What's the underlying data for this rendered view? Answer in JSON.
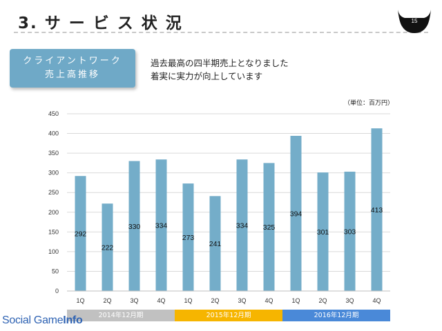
{
  "header": {
    "title": "3. サ ー ビ ス 状 況",
    "page_number": "15"
  },
  "label_box": {
    "line1": "クライアントワーク",
    "line2": "売上高推移"
  },
  "headline": {
    "line1": "過去最高の四半期売上となりました",
    "line2": "着実に実力が向上しています"
  },
  "unit_note": "（単位：百万円）",
  "periods": [
    {
      "label": "2014年12月期",
      "color": "#c1c1c1"
    },
    {
      "label": "2015年12月期",
      "color": "#f6b500"
    },
    {
      "label": "2016年12月期",
      "color": "#4a89d8"
    }
  ],
  "brand": {
    "part1": "Social Game",
    "part2": "Info"
  },
  "chart_data": {
    "type": "bar",
    "categories": [
      "1Q",
      "2Q",
      "3Q",
      "4Q",
      "1Q",
      "2Q",
      "3Q",
      "4Q",
      "1Q",
      "2Q",
      "3Q",
      "4Q"
    ],
    "values": [
      292,
      222,
      330,
      334,
      273,
      241,
      334,
      325,
      394,
      301,
      303,
      413
    ],
    "ylim": [
      0,
      450
    ],
    "yticks": [
      0,
      50,
      100,
      150,
      200,
      250,
      300,
      350,
      400,
      450
    ],
    "grid": true,
    "bar_color": "#74adc9"
  }
}
